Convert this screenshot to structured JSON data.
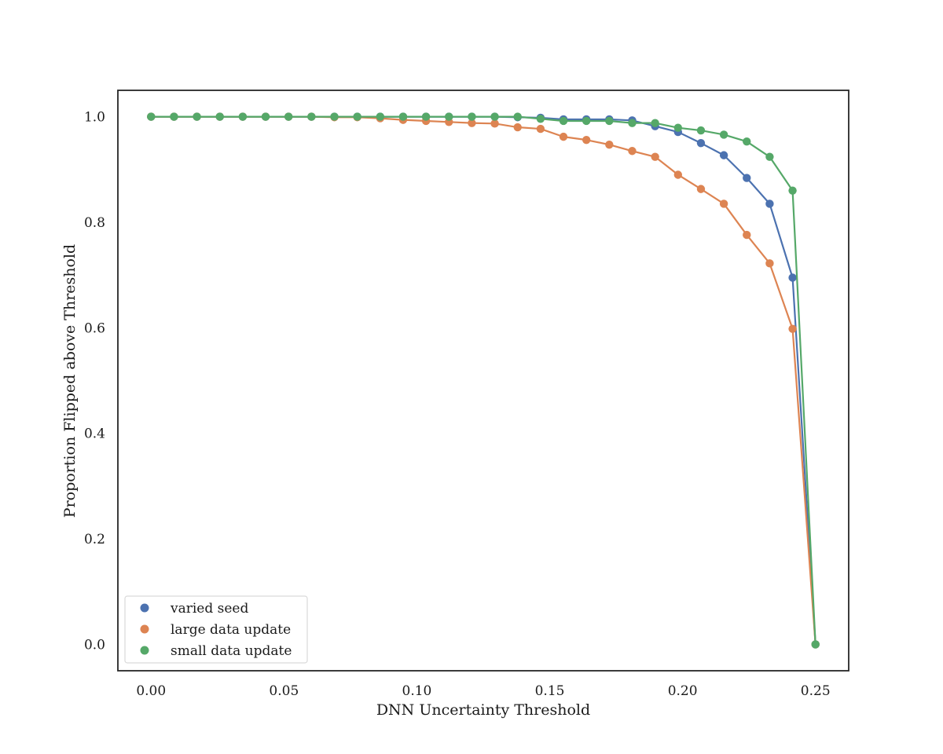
{
  "chart_data": {
    "type": "line",
    "title": "",
    "xlabel": "DNN Uncertainty Threshold",
    "ylabel": "Proportion Flipped above Threshold",
    "xlim": [
      -0.0125,
      0.2625
    ],
    "ylim": [
      -0.05,
      1.05
    ],
    "grid": false,
    "legend_position": "lower-left",
    "markers": true,
    "x_ticks": [
      0.0,
      0.05,
      0.1,
      0.15,
      0.2,
      0.25
    ],
    "x_tick_labels": [
      "0.00",
      "0.05",
      "0.10",
      "0.15",
      "0.20",
      "0.25"
    ],
    "y_ticks": [
      0.0,
      0.2,
      0.4,
      0.6,
      0.8,
      1.0
    ],
    "y_tick_labels": [
      "0.0",
      "0.2",
      "0.4",
      "0.6",
      "0.8",
      "1.0"
    ],
    "x": [
      0.0,
      0.00862,
      0.01724,
      0.02586,
      0.03448,
      0.0431,
      0.05172,
      0.06034,
      0.06897,
      0.07759,
      0.08621,
      0.09483,
      0.10345,
      0.11207,
      0.12069,
      0.12931,
      0.13793,
      0.14655,
      0.15517,
      0.16379,
      0.17241,
      0.18103,
      0.18966,
      0.19828,
      0.2069,
      0.21552,
      0.22414,
      0.23276,
      0.24138,
      0.25
    ],
    "series": [
      {
        "name": "varied seed",
        "color": "#4c72b0",
        "values": [
          1.0,
          1.0,
          1.0,
          1.0,
          1.0,
          1.0,
          1.0,
          1.0,
          1.0,
          1.0,
          1.0,
          1.0,
          1.0,
          1.0,
          1.0,
          1.0,
          0.999,
          0.998,
          0.995,
          0.995,
          0.995,
          0.993,
          0.982,
          0.971,
          0.95,
          0.927,
          0.884,
          0.835,
          0.695,
          0.0
        ]
      },
      {
        "name": "large data update",
        "color": "#dd8452",
        "values": [
          1.0,
          1.0,
          1.0,
          1.0,
          1.0,
          1.0,
          1.0,
          1.0,
          0.999,
          0.999,
          0.997,
          0.994,
          0.992,
          0.99,
          0.988,
          0.987,
          0.98,
          0.977,
          0.962,
          0.956,
          0.947,
          0.935,
          0.924,
          0.89,
          0.863,
          0.835,
          0.776,
          0.722,
          0.598,
          0.0
        ]
      },
      {
        "name": "small data update",
        "color": "#55a868",
        "values": [
          1.0,
          1.0,
          1.0,
          1.0,
          1.0,
          1.0,
          1.0,
          1.0,
          1.0,
          1.0,
          1.0,
          1.0,
          1.0,
          1.0,
          1.0,
          1.0,
          1.0,
          0.996,
          0.992,
          0.992,
          0.992,
          0.988,
          0.988,
          0.979,
          0.974,
          0.966,
          0.953,
          0.924,
          0.86,
          0.0
        ]
      }
    ]
  }
}
